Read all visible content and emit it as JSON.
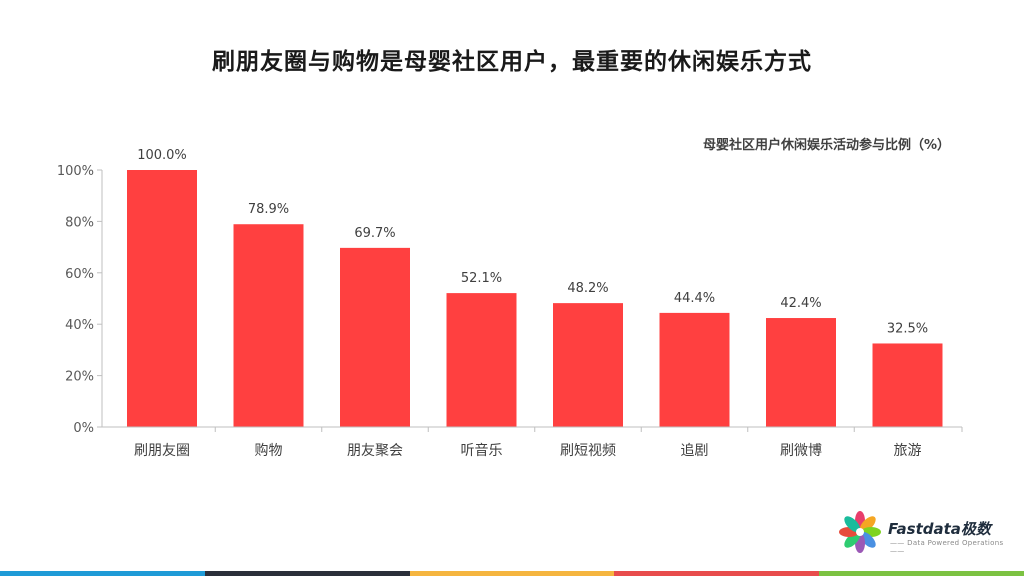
{
  "page": {
    "title": "刷朋友圈与购物是母婴社区用户，最重要的休闲娱乐方式"
  },
  "chart_data": {
    "type": "bar",
    "title": "母婴社区用户休闲娱乐活动参与比例（%）",
    "categories": [
      "刷朋友圈",
      "购物",
      "朋友聚会",
      "听音乐",
      "刷短视频",
      "追剧",
      "刷微博",
      "旅游"
    ],
    "values": [
      100.0,
      78.9,
      69.7,
      52.1,
      48.2,
      44.4,
      42.4,
      32.5
    ],
    "value_labels": [
      "100.0%",
      "78.9%",
      "69.7%",
      "52.1%",
      "48.2%",
      "44.4%",
      "42.4%",
      "32.5%"
    ],
    "y_ticks": [
      0,
      20,
      40,
      60,
      80,
      100
    ],
    "y_tick_labels": [
      "0%",
      "20%",
      "40%",
      "60%",
      "80%",
      "100%"
    ],
    "ylim": [
      0,
      100
    ],
    "grid": false,
    "bar_color": "#ff4040"
  },
  "logo": {
    "name": "Fastdata极数",
    "tagline": "—— Data Powered Operations ——",
    "petal_colors": [
      "#e83e6c",
      "#f5a623",
      "#7ed321",
      "#4a90e2",
      "#9b59b6",
      "#2ecc71",
      "#e74c3c",
      "#1abc9c"
    ]
  },
  "footer": {
    "stripe_colors": [
      "#1f9bd7",
      "#2b2f3a",
      "#f5b53f",
      "#e84c4c",
      "#7cc242"
    ]
  }
}
